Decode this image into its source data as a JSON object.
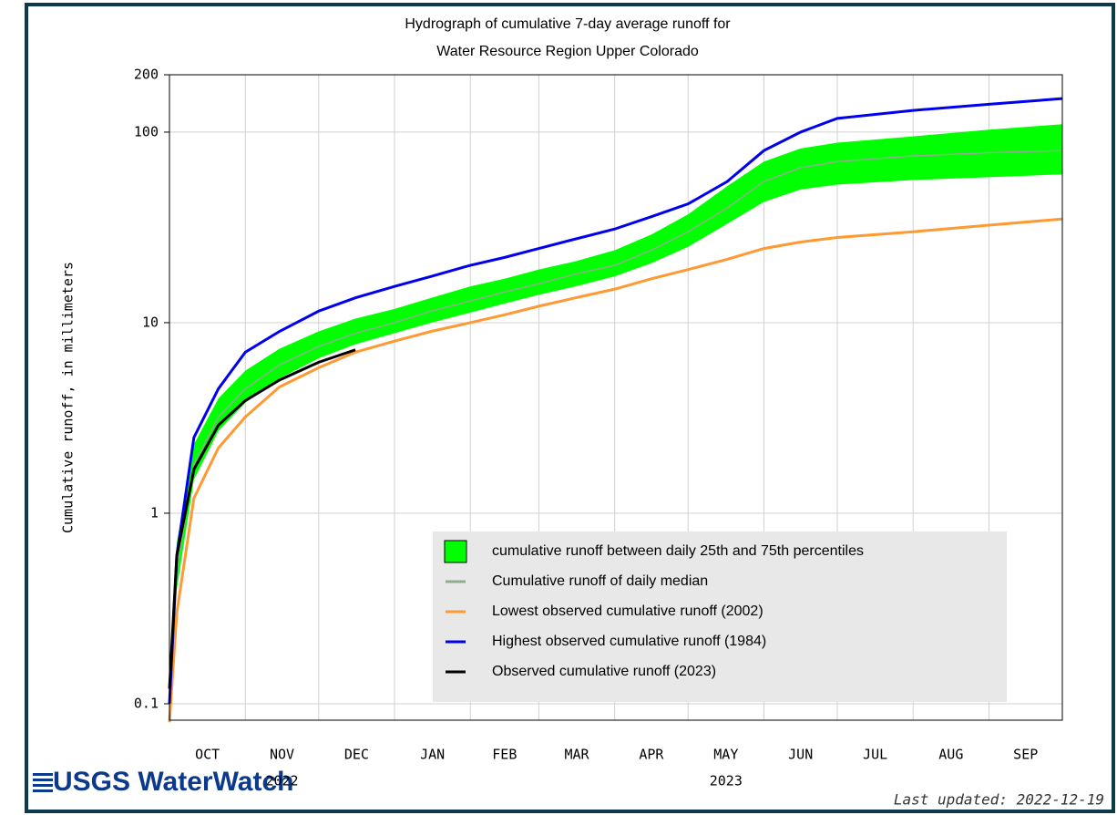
{
  "chart_data": {
    "type": "line",
    "title": [
      "Hydrograph of cumulative 7-day average  runoff for",
      "Water Resource Region Upper Colorado"
    ],
    "ylabel": "Cumulative runoff, in millimeters",
    "log_y": true,
    "grid": true,
    "ylim": [
      0.082,
      200
    ],
    "yticks": [
      0.1,
      1,
      10,
      100,
      200
    ],
    "xlim": [
      0,
      365
    ],
    "xticks": [
      0,
      31,
      61,
      92,
      123,
      151,
      182,
      212,
      243,
      273,
      304,
      335,
      365
    ],
    "months": [
      {
        "label": "OCT"
      },
      {
        "label": "NOV",
        "year": "2022"
      },
      {
        "label": "DEC"
      },
      {
        "label": "JAN"
      },
      {
        "label": "FEB"
      },
      {
        "label": "MAR"
      },
      {
        "label": "APR"
      },
      {
        "label": "MAY",
        "year": "2023"
      },
      {
        "label": "JUN"
      },
      {
        "label": "JUL"
      },
      {
        "label": "AUG"
      },
      {
        "label": "SEP"
      }
    ],
    "x": [
      0,
      3,
      10,
      20,
      31,
      45,
      61,
      76,
      92,
      107,
      123,
      137,
      151,
      166,
      182,
      197,
      212,
      228,
      243,
      258,
      273,
      304,
      335,
      365
    ],
    "band": {
      "name": "cumulative runoff between daily 25th and 75th percentiles",
      "color": "#00ff00",
      "lower": [
        0.09,
        0.4,
        1.5,
        2.7,
        3.8,
        5.1,
        6.5,
        7.7,
        8.8,
        10,
        11.3,
        12.6,
        14,
        15.5,
        17.5,
        20.5,
        25,
        33,
        43,
        50,
        53,
        56,
        58,
        60
      ],
      "upper": [
        0.12,
        0.7,
        2.3,
        4,
        5.6,
        7.3,
        9,
        10.5,
        11.8,
        13.5,
        15.5,
        17,
        19,
        21,
        24,
        29,
        37,
        52,
        70,
        82,
        88,
        95,
        103,
        110
      ]
    },
    "series": [
      {
        "name": "Cumulative runoff of daily median",
        "color": "#8fae8f",
        "values": [
          0.1,
          0.5,
          1.8,
          3.2,
          4.5,
          6,
          7.5,
          8.8,
          10,
          11.5,
          13,
          14.5,
          16,
          18,
          20,
          24,
          30,
          40,
          55,
          65,
          70,
          75,
          78,
          80
        ]
      },
      {
        "name": "Lowest observed cumulative runoff (2002)",
        "color": "#ff9933",
        "values": [
          0.08,
          0.3,
          1.2,
          2.2,
          3.2,
          4.6,
          5.8,
          7,
          8,
          9,
          10,
          11,
          12.2,
          13.5,
          15,
          17,
          19,
          21.5,
          24.5,
          26.5,
          28,
          30,
          32.5,
          35
        ]
      },
      {
        "name": "Highest observed cumulative runoff (1984)",
        "color": "#0000ee",
        "values": [
          0.1,
          0.6,
          2.5,
          4.5,
          7,
          9,
          11.5,
          13.5,
          15.5,
          17.5,
          20,
          22,
          24.5,
          27.5,
          31,
          36,
          42,
          55,
          80,
          100,
          118,
          130,
          140,
          150
        ]
      },
      {
        "name": "Observed cumulative runoff (2023)",
        "color": "#000000",
        "values": [
          0.12,
          0.6,
          1.7,
          2.9,
          3.9,
          5,
          6.2,
          7.2,
          null,
          null,
          null,
          null,
          null,
          null,
          null,
          null,
          null,
          null,
          null,
          null,
          null,
          null,
          null,
          null
        ]
      }
    ],
    "logo": "USGS WaterWatch",
    "last_updated": "Last updated: 2022-12-19"
  }
}
